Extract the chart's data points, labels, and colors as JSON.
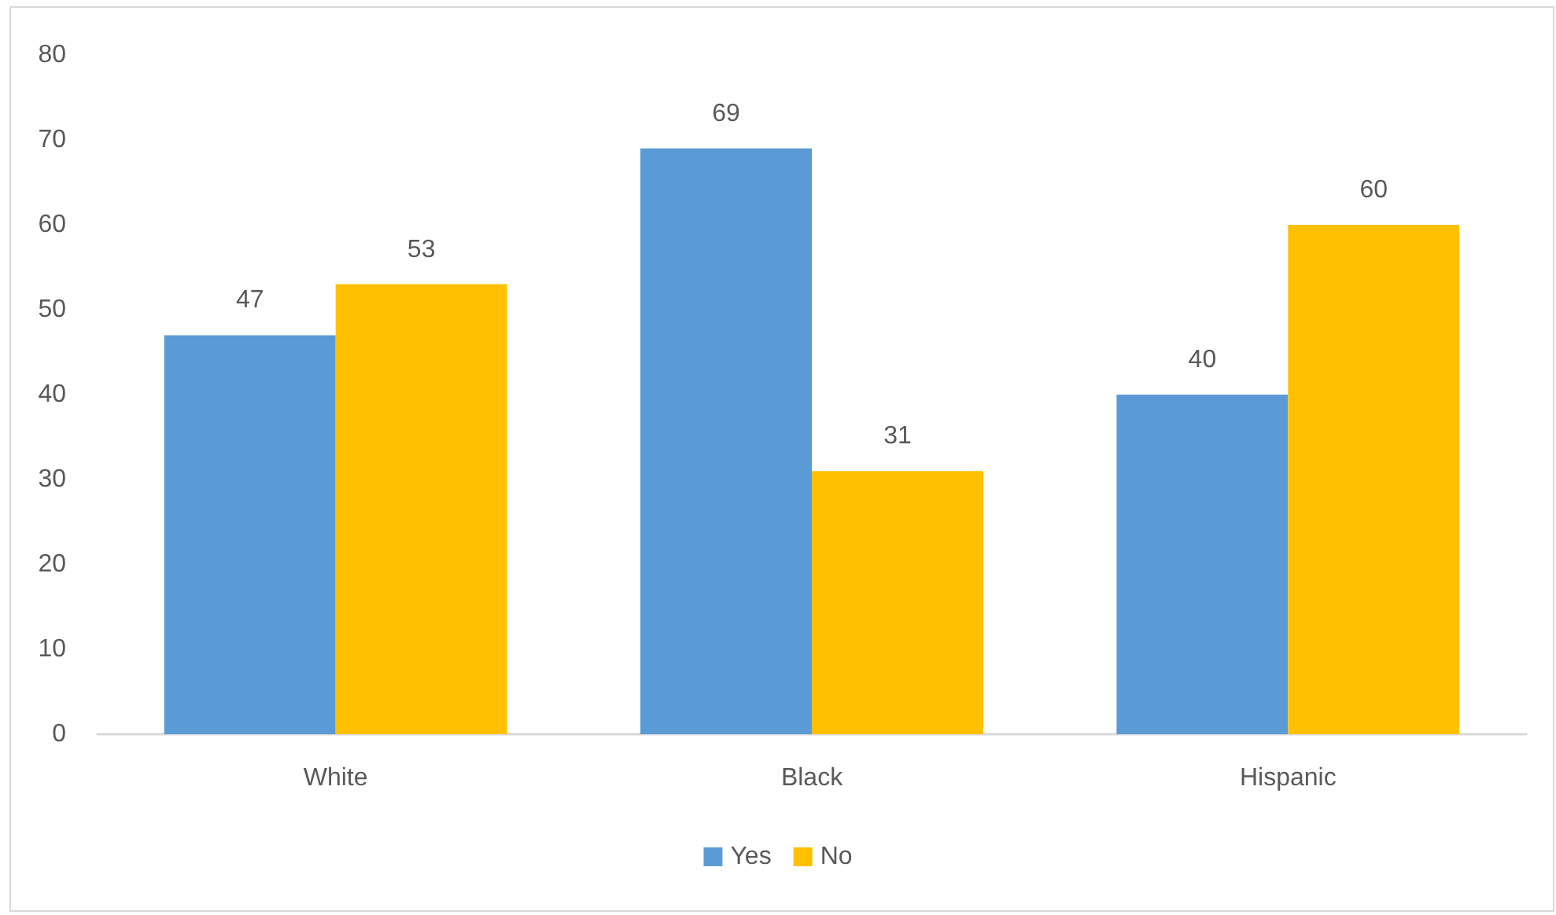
{
  "chart_data": {
    "type": "bar",
    "categories": [
      "White",
      "Black",
      "Hispanic"
    ],
    "series": [
      {
        "name": "Yes",
        "color": "#5b9bd5",
        "values": [
          47,
          69,
          40
        ]
      },
      {
        "name": "No",
        "color": "#ffc000",
        "values": [
          53,
          31,
          60
        ]
      }
    ],
    "ylim": [
      0,
      80
    ],
    "yticks": [
      0,
      10,
      20,
      30,
      40,
      50,
      60,
      70,
      80
    ],
    "legend": "bottom",
    "data_labels": true
  }
}
